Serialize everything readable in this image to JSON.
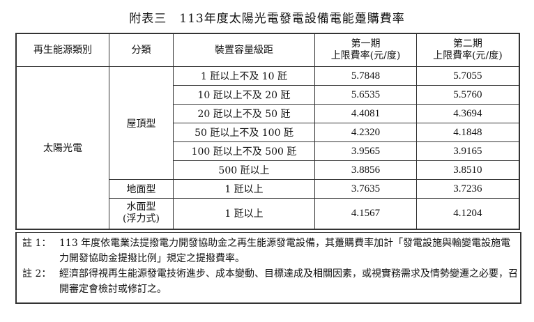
{
  "title": "附表三　113年度太陽光電發電設備電能躉購費率",
  "headers": {
    "type": "再生能源類別",
    "category": "分類",
    "capacity": "裝置容量級距",
    "period1_line1": "第一期",
    "period1_line2": "上限費率(元/度)",
    "period2_line1": "第二期",
    "period2_line2": "上限費率(元/度)"
  },
  "energy_type": "太陽光電",
  "groups": {
    "rooftop": "屋頂型",
    "ground": "地面型",
    "water_line1": "水面型",
    "water_line2": "(浮力式)"
  },
  "rows": [
    {
      "capacity": "1 瓩以上不及 10 瓩",
      "p1": "5.7848",
      "p2": "5.7055"
    },
    {
      "capacity": "10 瓩以上不及 20 瓩",
      "p1": "5.6535",
      "p2": "5.5760"
    },
    {
      "capacity": "20 瓩以上不及 50 瓩",
      "p1": "4.4081",
      "p2": "4.3694"
    },
    {
      "capacity": "50 瓩以上不及 100 瓩",
      "p1": "4.2320",
      "p2": "4.1848"
    },
    {
      "capacity": "100 瓩以上不及 500 瓩",
      "p1": "3.9565",
      "p2": "3.9165"
    },
    {
      "capacity": "500 瓩以上",
      "p1": "3.8856",
      "p2": "3.8510"
    },
    {
      "capacity": "1 瓩以上",
      "p1": "3.7635",
      "p2": "3.7236"
    },
    {
      "capacity": "1 瓩以上",
      "p1": "4.1567",
      "p2": "4.1204"
    }
  ],
  "notes": [
    {
      "label": "註 1：",
      "text": "113 年度依電業法提撥電力開發協助金之再生能源發電設備，其躉購費率加計「發電設施與輸變電設施電力開發協助金提撥比例」規定之提撥費率。"
    },
    {
      "label": "註 2：",
      "text": "經濟部得視再生能源發電技術進步、成本變動、目標達成及相關因素，或視實務需求及情勢變遷之必要，召開審定會檢討或修訂之。"
    }
  ]
}
